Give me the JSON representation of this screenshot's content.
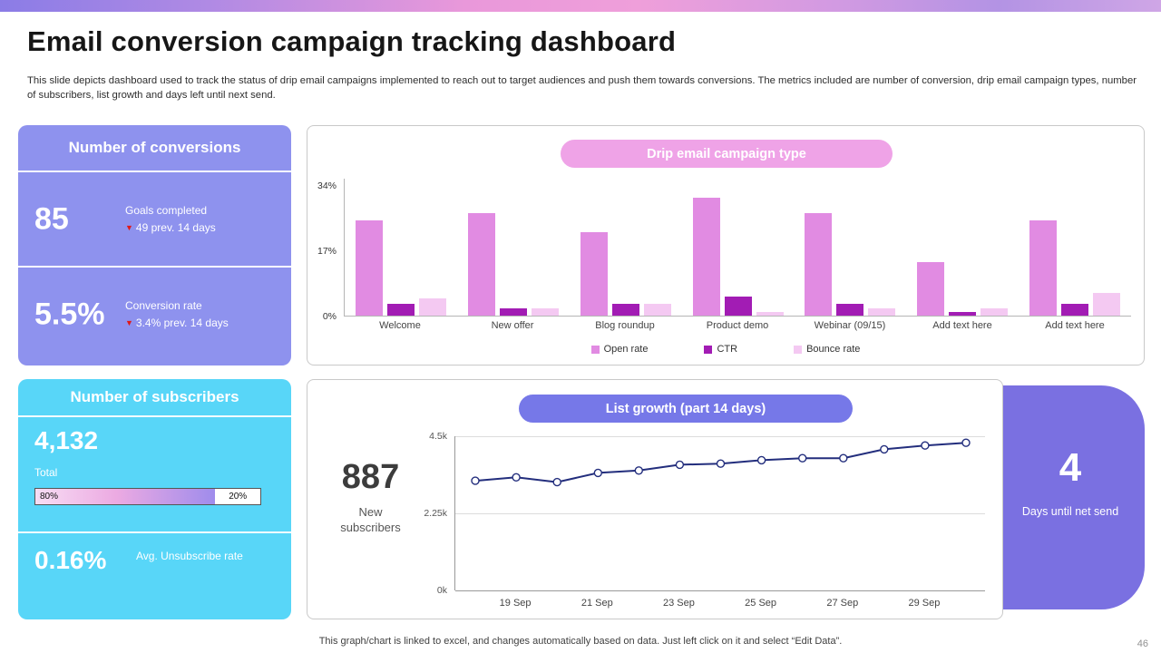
{
  "page": {
    "title": "Email conversion campaign tracking dashboard",
    "description": "This slide depicts dashboard used to track the status of drip email campaigns implemented to reach out to target audiences and push them towards conversions. The metrics included are number of conversion, drip email campaign types, number of subscribers, list growth and days left until next send.",
    "footer_note": "This graph/chart is linked to excel, and changes automatically based on data. Just left click on it and select “Edit Data”.",
    "page_number": "46"
  },
  "conversions_card": {
    "title": "Number of conversions",
    "metric1_value": "85",
    "metric1_label": "Goals completed",
    "metric1_delta": "49 prev. 14 days",
    "metric2_value": "5.5%",
    "metric2_label": "Conversion rate",
    "metric2_delta": "3.4% prev. 14 days"
  },
  "subscribers_card": {
    "title": "Number of subscribers",
    "total_value": "4,132",
    "total_label": "Total",
    "progress_split": 80,
    "progress_left": "80%",
    "progress_right": "20%",
    "rate_value": "0.16%",
    "rate_label": "Avg. Unsubscribe rate"
  },
  "days_card": {
    "value": "4",
    "label": "Days until net send"
  },
  "chart_data": [
    {
      "type": "bar",
      "title": "Drip email campaign type",
      "categories": [
        "Welcome",
        "New offer",
        "Blog roundup",
        "Product demo",
        "Webinar (09/15)",
        "Add text here",
        "Add text here"
      ],
      "series": [
        {
          "name": "Open rate",
          "color": "#e18be2",
          "values": [
            25,
            27,
            22,
            31,
            27,
            14,
            25
          ]
        },
        {
          "name": "CTR",
          "color": "#a21cb4",
          "values": [
            3,
            2,
            3,
            5,
            3,
            1,
            3
          ]
        },
        {
          "name": "Bounce rate",
          "color": "#f4c9f2",
          "values": [
            4.5,
            2,
            3,
            1,
            2,
            2,
            6
          ]
        }
      ],
      "ylim": [
        0,
        36
      ],
      "yticks": [
        "0%",
        "17%",
        "34%"
      ],
      "ytick_values": [
        0,
        17,
        34
      ],
      "legend_position": "bottom"
    },
    {
      "type": "line",
      "title": "List growth (part 14 days)",
      "stat_value": "887",
      "stat_label": "New subscribers",
      "x_labels": [
        "19 Sep",
        "21 Sep",
        "23 Sep",
        "25 Sep",
        "27 Sep",
        "29 Sep"
      ],
      "label_point_indices": [
        1,
        3,
        5,
        7,
        9,
        11
      ],
      "values": [
        3.2,
        3.3,
        3.16,
        3.43,
        3.5,
        3.67,
        3.7,
        3.8,
        3.86,
        3.86,
        4.12,
        4.23,
        4.31
      ],
      "ylim": [
        0,
        4.5
      ],
      "yticks": [
        "0k",
        "2.25k",
        "4.5k"
      ],
      "ytick_values": [
        0,
        2.25,
        4.5
      ],
      "line_color": "#232e7d"
    }
  ]
}
